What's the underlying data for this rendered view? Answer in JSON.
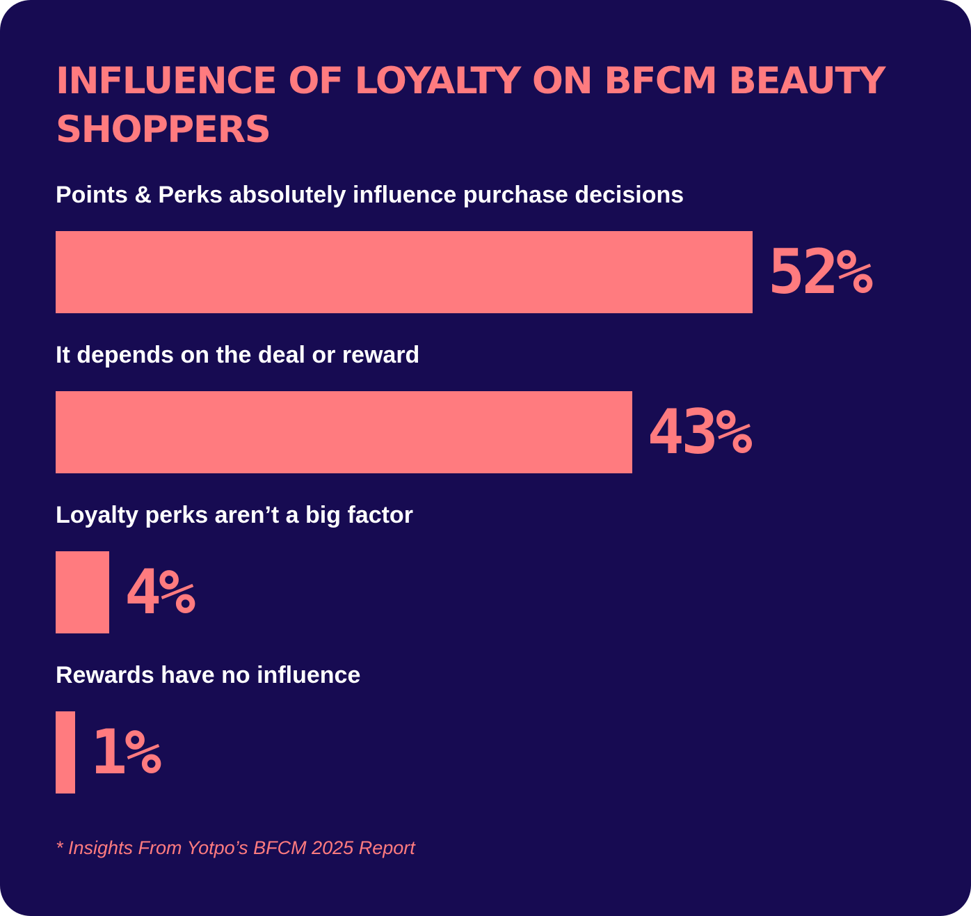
{
  "colors": {
    "background": "#170b52",
    "accent": "#ff7b7f",
    "label": "#ffffff"
  },
  "chart_data": {
    "type": "bar",
    "orientation": "horizontal",
    "title": "INFLUENCE OF LOYALTY ON BFCM BEAUTY SHOPPERS",
    "categories": [
      "Points & Perks absolutely influence purchase decisions",
      "It depends on the deal or reward",
      "Loyalty perks aren’t a big factor",
      "Rewards have no influence"
    ],
    "values": [
      52,
      43,
      4,
      1
    ],
    "value_labels": [
      "52%",
      "43%",
      "4%",
      "1%"
    ],
    "unit": "%",
    "grid": false,
    "axes": false
  },
  "footnote": "* Insights From Yotpo’s BFCM 2025 Report"
}
